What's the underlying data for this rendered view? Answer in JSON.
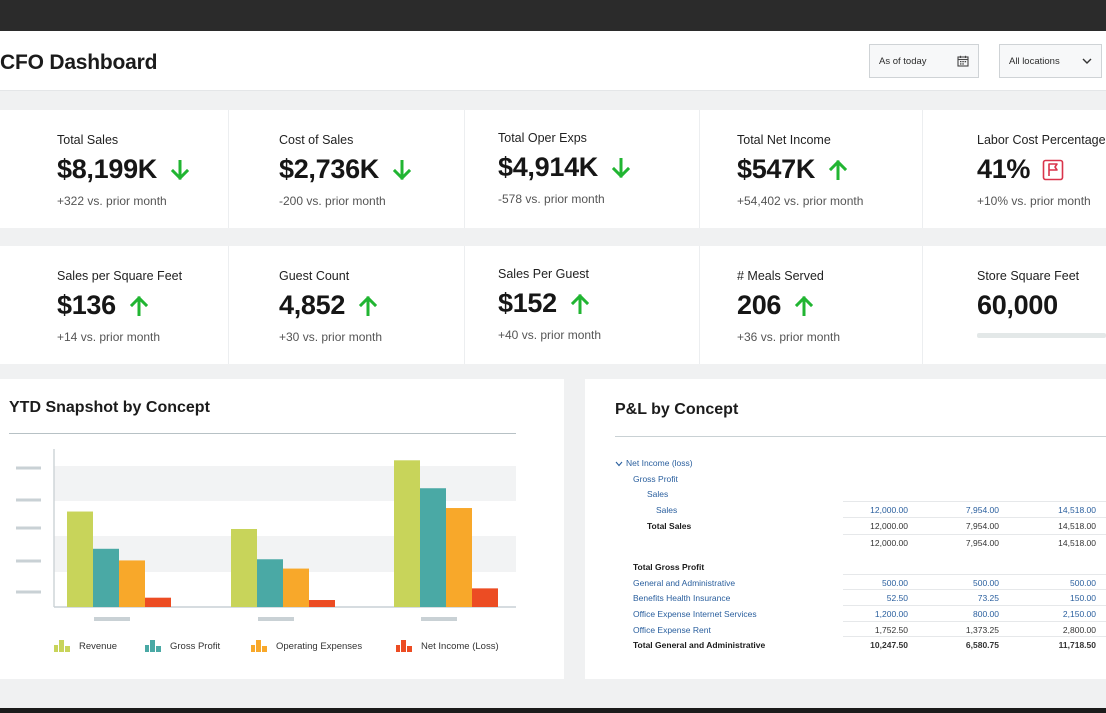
{
  "header": {
    "title": "CFO Dashboard",
    "date_filter": "As of today",
    "date_icon": "calendar-icon",
    "location_filter": "All locations",
    "location_icon": "chevron-down-icon"
  },
  "kpis_row1": [
    {
      "label": "Total Sales",
      "value": "$8,199K",
      "delta": "+322 vs. prior month",
      "trend": "down"
    },
    {
      "label": "Cost of Sales",
      "value": "$2,736K",
      "delta": "-200 vs. prior month",
      "trend": "down"
    },
    {
      "label": "Total Oper Exps",
      "value": "$4,914K",
      "delta": "-578 vs. prior month",
      "trend": "down"
    },
    {
      "label": "Total Net Income",
      "value": "$547K",
      "delta": "+54,402 vs. prior month",
      "trend": "up"
    },
    {
      "label": "Labor Cost Percentage",
      "value": "41%",
      "delta": "+10% vs. prior month",
      "trend": "flag"
    }
  ],
  "kpis_row2": [
    {
      "label": "Sales per Square Feet",
      "value": "$136",
      "delta": "+14 vs. prior month",
      "trend": "up"
    },
    {
      "label": "Guest Count",
      "value": "4,852",
      "delta": "+30 vs. prior month",
      "trend": "up"
    },
    {
      "label": "Sales Per Guest",
      "value": "$152",
      "delta": "+40 vs. prior month",
      "trend": "up"
    },
    {
      "label": "# Meals Served",
      "value": "206",
      "delta": "+36 vs. prior month",
      "trend": "up"
    },
    {
      "label": "Store Square Feet",
      "value": "60,000",
      "delta": "",
      "trend": "none"
    }
  ],
  "colors": {
    "up": "#21b532",
    "down": "#21b532",
    "flag": "#d9344b",
    "revenue": "#c8d45a",
    "gross_profit": "#4aa9a5",
    "operating_expenses": "#f8a82a",
    "net_income": "#ec4c23"
  },
  "ytd": {
    "title": "YTD Snapshot by Concept",
    "chart_data": {
      "type": "bar",
      "title": "YTD Snapshot by Concept",
      "categories": [
        "",
        "",
        ""
      ],
      "series": [
        {
          "name": "Revenue",
          "values": [
            82,
            67,
            126
          ]
        },
        {
          "name": "Gross Profit",
          "values": [
            50,
            41,
            102
          ]
        },
        {
          "name": "Operating Expenses",
          "values": [
            40,
            33,
            85
          ]
        },
        {
          "name": "Net Income (Loss)",
          "values": [
            8,
            6,
            16
          ]
        }
      ],
      "ylim": [
        0,
        140
      ],
      "grid": true,
      "legend": "bottom"
    },
    "legend": [
      "Revenue",
      "Gross Profit",
      "Operating Expenses",
      "Net Income (Loss)"
    ]
  },
  "pl": {
    "title": "P&L by Concept",
    "tree_icon": "chevron-down-icon",
    "rows": [
      {
        "label": "Net Income (loss)",
        "style": "label",
        "indent": 0,
        "values": []
      },
      {
        "label": "Gross Profit",
        "style": "label",
        "indent": 1,
        "values": []
      },
      {
        "label": "Sales",
        "style": "label",
        "indent": 2,
        "values": []
      },
      {
        "label": "Sales",
        "style": "label",
        "indent": 3,
        "values": [
          "12,000.00",
          "7,954.00",
          "14,518.00"
        ],
        "num_style": "blue"
      },
      {
        "label": "Total Sales",
        "style": "bold",
        "indent": 2,
        "values": [
          "12,000.00",
          "7,954.00",
          "14,518.00"
        ],
        "num_style": "dark"
      },
      {
        "label": "",
        "style": "label",
        "indent": 0,
        "values": [
          "12,000.00",
          "7,954.00",
          "14,518.00"
        ],
        "num_style": "dark"
      },
      {
        "label": "Total Gross Profit",
        "style": "bold",
        "indent": 1,
        "values": []
      },
      {
        "label": "General and Administrative",
        "style": "label",
        "indent": 1,
        "values": [
          "500.00",
          "500.00",
          "500.00"
        ],
        "num_style": "blue"
      },
      {
        "label": "Benefits Health Insurance",
        "style": "label",
        "indent": 1,
        "values": [
          "52.50",
          "73.25",
          "150.00"
        ],
        "num_style": "blue"
      },
      {
        "label": "Office Expense Internet Services",
        "style": "label",
        "indent": 1,
        "values": [
          "1,200.00",
          "800.00",
          "2,150.00"
        ],
        "num_style": "blue"
      },
      {
        "label": "Office Expense Rent",
        "style": "label",
        "indent": 1,
        "values": [
          "1,752.50",
          "1,373.25",
          "2,800.00"
        ],
        "num_style": "dark"
      },
      {
        "label": "Total General and Administrative",
        "style": "bold",
        "indent": 1,
        "values": [
          "10,247.50",
          "6,580.75",
          "11,718.50"
        ],
        "num_style": "darkbold"
      }
    ]
  }
}
